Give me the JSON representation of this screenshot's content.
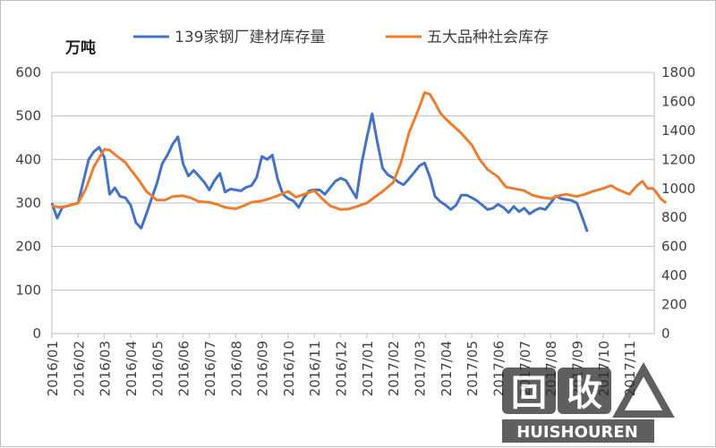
{
  "chart_data": {
    "type": "line",
    "unit_label": "万吨",
    "x": [
      "2016/01",
      "2016/02",
      "2016/03",
      "2016/04",
      "2016/05",
      "2016/06",
      "2016/07",
      "2016/08",
      "2016/09",
      "2016/10",
      "2016/11",
      "2016/12",
      "2017/01",
      "2017/02",
      "2017/03",
      "2017/04",
      "2017/05",
      "2017/06",
      "2017/07",
      "2017/08",
      "2017/09",
      "2017/10",
      "2017/11"
    ],
    "y_left": {
      "range": [
        0,
        600
      ],
      "ticks": [
        0,
        100,
        200,
        300,
        400,
        500,
        600
      ]
    },
    "y_right": {
      "range": [
        0,
        1800
      ],
      "ticks": [
        0,
        200,
        400,
        600,
        800,
        1000,
        1200,
        1400,
        1600,
        1800
      ]
    },
    "grid": true,
    "legend_position": "top",
    "series": [
      {
        "name": "139家钢厂建材库存量",
        "axis": "left",
        "color": "#4472c4",
        "points": [
          [
            "2016/01",
            300
          ],
          [
            "2016/01.2",
            265
          ],
          [
            "2016/01.4",
            290
          ],
          [
            "2016/01.7",
            295
          ],
          [
            "2016/02",
            300
          ],
          [
            "2016/02.2",
            350
          ],
          [
            "2016/02.4",
            400
          ],
          [
            "2016/02.6",
            418
          ],
          [
            "2016/02.8",
            428
          ],
          [
            "2016/03",
            405
          ],
          [
            "2016/03.2",
            320
          ],
          [
            "2016/03.4",
            335
          ],
          [
            "2016/03.6",
            315
          ],
          [
            "2016/03.8",
            312
          ],
          [
            "2016/04",
            295
          ],
          [
            "2016/04.2",
            255
          ],
          [
            "2016/04.4",
            242
          ],
          [
            "2016/04.6",
            275
          ],
          [
            "2016/04.8",
            310
          ],
          [
            "2016/05",
            345
          ],
          [
            "2016/05.2",
            390
          ],
          [
            "2016/05.4",
            410
          ],
          [
            "2016/05.6",
            435
          ],
          [
            "2016/05.8",
            452
          ],
          [
            "2016/06",
            390
          ],
          [
            "2016/06.2",
            362
          ],
          [
            "2016/06.4",
            375
          ],
          [
            "2016/06.6",
            362
          ],
          [
            "2016/06.8",
            348
          ],
          [
            "2016/07",
            330
          ],
          [
            "2016/07.2",
            352
          ],
          [
            "2016/07.4",
            368
          ],
          [
            "2016/07.6",
            325
          ],
          [
            "2016/07.8",
            332
          ],
          [
            "2016/08",
            330
          ],
          [
            "2016/08.2",
            328
          ],
          [
            "2016/08.4",
            336
          ],
          [
            "2016/08.6",
            340
          ],
          [
            "2016/08.8",
            358
          ],
          [
            "2016/09",
            407
          ],
          [
            "2016/09.2",
            400
          ],
          [
            "2016/09.4",
            410
          ],
          [
            "2016/09.6",
            355
          ],
          [
            "2016/09.8",
            320
          ],
          [
            "2016/10",
            310
          ],
          [
            "2016/10.2",
            305
          ],
          [
            "2016/10.4",
            290
          ],
          [
            "2016/10.6",
            312
          ],
          [
            "2016/10.8",
            328
          ],
          [
            "2016/11",
            330
          ],
          [
            "2016/11.2",
            330
          ],
          [
            "2016/11.4",
            320
          ],
          [
            "2016/11.6",
            335
          ],
          [
            "2016/11.8",
            350
          ],
          [
            "2016/12",
            357
          ],
          [
            "2016/12.2",
            352
          ],
          [
            "2016/12.4",
            332
          ],
          [
            "2016/12.6",
            312
          ],
          [
            "2016/12.8",
            390
          ],
          [
            "2017/01",
            450
          ],
          [
            "2017/01.2",
            505
          ],
          [
            "2017/01.4",
            440
          ],
          [
            "2017/01.6",
            380
          ],
          [
            "2017/01.8",
            365
          ],
          [
            "2017/02",
            358
          ],
          [
            "2017/02.2",
            348
          ],
          [
            "2017/02.4",
            342
          ],
          [
            "2017/02.6",
            355
          ],
          [
            "2017/02.8",
            370
          ],
          [
            "2017/03",
            385
          ],
          [
            "2017/03.2",
            392
          ],
          [
            "2017/03.4",
            360
          ],
          [
            "2017/03.6",
            315
          ],
          [
            "2017/03.8",
            303
          ],
          [
            "2017/04",
            295
          ],
          [
            "2017/04.2",
            285
          ],
          [
            "2017/04.4",
            295
          ],
          [
            "2017/04.6",
            318
          ],
          [
            "2017/04.8",
            318
          ],
          [
            "2017/05",
            312
          ],
          [
            "2017/05.2",
            305
          ],
          [
            "2017/05.4",
            295
          ],
          [
            "2017/05.6",
            285
          ],
          [
            "2017/05.8",
            288
          ],
          [
            "2017/06",
            297
          ],
          [
            "2017/06.2",
            290
          ],
          [
            "2017/06.4",
            278
          ],
          [
            "2017/06.6",
            292
          ],
          [
            "2017/06.8",
            280
          ],
          [
            "2017/07",
            288
          ],
          [
            "2017/07.2",
            275
          ],
          [
            "2017/07.4",
            283
          ],
          [
            "2017/07.6",
            288
          ],
          [
            "2017/07.8",
            285
          ],
          [
            "2017/08",
            300
          ],
          [
            "2017/08.2",
            316
          ],
          [
            "2017/08.4",
            310
          ],
          [
            "2017/08.6",
            308
          ],
          [
            "2017/08.8",
            306
          ],
          [
            "2017/09",
            300
          ],
          [
            "2017/09.2",
            268
          ],
          [
            "2017/09.4",
            234
          ]
        ]
      },
      {
        "name": "五大品种社会库存",
        "axis": "right",
        "color": "#ed7d31",
        "points": [
          [
            "2016/01",
            880
          ],
          [
            "2016/01.3",
            870
          ],
          [
            "2016/01.6",
            880
          ],
          [
            "2016/02",
            900
          ],
          [
            "2016/02.3",
            1000
          ],
          [
            "2016/02.6",
            1150
          ],
          [
            "2016/03",
            1270
          ],
          [
            "2016/03.2",
            1265
          ],
          [
            "2016/03.5",
            1220
          ],
          [
            "2016/03.8",
            1180
          ],
          [
            "2016/04",
            1130
          ],
          [
            "2016/04.3",
            1060
          ],
          [
            "2016/04.6",
            980
          ],
          [
            "2016/05",
            920
          ],
          [
            "2016/05.3",
            920
          ],
          [
            "2016/05.6",
            945
          ],
          [
            "2016/06",
            950
          ],
          [
            "2016/06.3",
            935
          ],
          [
            "2016/06.6",
            910
          ],
          [
            "2016/07",
            905
          ],
          [
            "2016/07.3",
            890
          ],
          [
            "2016/07.6",
            870
          ],
          [
            "2016/08",
            860
          ],
          [
            "2016/08.3",
            880
          ],
          [
            "2016/08.6",
            905
          ],
          [
            "2016/09",
            915
          ],
          [
            "2016/09.3",
            930
          ],
          [
            "2016/09.6",
            950
          ],
          [
            "2016/10",
            980
          ],
          [
            "2016/10.3",
            940
          ],
          [
            "2016/10.6",
            960
          ],
          [
            "2016/11",
            985
          ],
          [
            "2016/11.3",
            930
          ],
          [
            "2016/11.6",
            880
          ],
          [
            "2016/12",
            855
          ],
          [
            "2016/12.3",
            858
          ],
          [
            "2016/12.6",
            875
          ],
          [
            "2017/01",
            900
          ],
          [
            "2017/01.3",
            940
          ],
          [
            "2017/01.6",
            980
          ],
          [
            "2017/02",
            1040
          ],
          [
            "2017/02.3",
            1180
          ],
          [
            "2017/02.6",
            1380
          ],
          [
            "2017/03",
            1560
          ],
          [
            "2017/03.2",
            1660
          ],
          [
            "2017/03.4",
            1650
          ],
          [
            "2017/03.6",
            1590
          ],
          [
            "2017/03.8",
            1520
          ],
          [
            "2017/04",
            1480
          ],
          [
            "2017/04.3",
            1430
          ],
          [
            "2017/04.6",
            1380
          ],
          [
            "2017/05",
            1300
          ],
          [
            "2017/05.3",
            1200
          ],
          [
            "2017/05.6",
            1130
          ],
          [
            "2017/06",
            1080
          ],
          [
            "2017/06.3",
            1010
          ],
          [
            "2017/06.6",
            1000
          ],
          [
            "2017/07",
            985
          ],
          [
            "2017/07.3",
            955
          ],
          [
            "2017/07.6",
            940
          ],
          [
            "2017/08",
            930
          ],
          [
            "2017/08.3",
            950
          ],
          [
            "2017/08.6",
            960
          ],
          [
            "2017/09",
            945
          ],
          [
            "2017/09.3",
            960
          ],
          [
            "2017/09.6",
            980
          ],
          [
            "2017/10",
            1000
          ],
          [
            "2017/10.3",
            1020
          ],
          [
            "2017/10.6",
            990
          ],
          [
            "2017/11",
            960
          ],
          [
            "2017/11.3",
            1020
          ],
          [
            "2017/11.5",
            1050
          ],
          [
            "2017/11.7",
            1000
          ],
          [
            "2017/11.9",
            1000
          ],
          [
            "2017/12",
            980
          ],
          [
            "2017/12.2",
            930
          ],
          [
            "2017/12.4",
            900
          ]
        ]
      }
    ]
  },
  "watermark": {
    "text": "HUISHOUREN",
    "big_chars": "回收"
  }
}
